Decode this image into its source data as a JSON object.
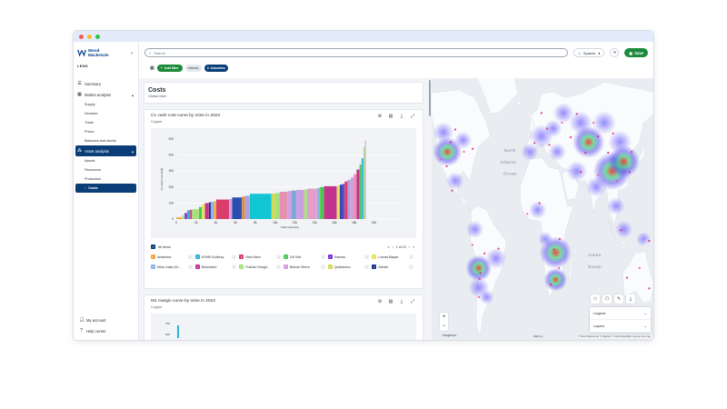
{
  "brand": {
    "name": "Wood Mackenzie",
    "product": "LENS"
  },
  "nav": {
    "summary": "Summary",
    "market_analysis": "Market analysis",
    "market_subs": [
      "Supply",
      "Demand",
      "Trade",
      "Prices",
      "Balances and stocks"
    ],
    "asset_analysis": "Asset analysis",
    "asset_subs": [
      "Assets",
      "Resources",
      "Production",
      "Costs"
    ],
    "my_account": "My account",
    "help_center": "Help center"
  },
  "topbar": {
    "search_placeholder": "Search",
    "spaces": "Spaces",
    "save": "Save"
  },
  "filters": {
    "add_filter": "Add filter",
    "industry_chip": "Industry",
    "industries_count": "4",
    "industries_label": "Industries"
  },
  "page": {
    "title": "Costs",
    "subtitle": "Global view"
  },
  "card1": {
    "title": "C1 cash cost curve by mine in 2023",
    "subtitle": "Copper"
  },
  "card2": {
    "title": "M1 margin curve by mine in 2023",
    "subtitle": "Copper",
    "tick_700": "700",
    "tick_600": "600"
  },
  "legend": {
    "all_items": "All items",
    "pager": "1 of 10",
    "items": [
      {
        "label": "Antamina",
        "color": "#f2a63b"
      },
      {
        "label": "KSHM Sudbury",
        "color": "#2bb5d8"
      },
      {
        "label": "New Afton",
        "color": "#d93e6a"
      },
      {
        "label": "Ok Tedi",
        "color": "#4cc74f"
      },
      {
        "label": "Kamoto",
        "color": "#7b2fd6"
      },
      {
        "label": "Lomas Bayas",
        "color": "#e8e05a"
      },
      {
        "label": "Mina Justa (M...",
        "color": "#8fb3e8"
      },
      {
        "label": "Boschekul",
        "color": "#c2328f"
      },
      {
        "label": "Fushan Hongli...",
        "color": "#a8e07a"
      },
      {
        "label": "Bolivar Sierra",
        "color": "#d69be0"
      },
      {
        "label": "Quellaveco",
        "color": "#d8d850"
      },
      {
        "label": "Ashele",
        "color": "#1f2f8c"
      }
    ]
  },
  "chart_data": {
    "type": "bar",
    "title": "C1 cash cost curve by mine in 2023",
    "subtitle": "Copper",
    "xlabel": "Paid metal (kt)",
    "ylabel": "C1 cash cost (c/lb)",
    "ylim": [
      0,
      500
    ],
    "xlim": [
      0,
      23000
    ],
    "y_ticks": [
      "0",
      "100",
      "200",
      "300",
      "400",
      "500"
    ],
    "x_ticks": [
      "0",
      "2k",
      "4k",
      "6k",
      "8k",
      "10k",
      "12k",
      "14k",
      "16k",
      "18k",
      "20k"
    ],
    "bars": [
      {
        "w": 600,
        "v": 10,
        "c": "#f2a63b"
      },
      {
        "w": 250,
        "v": 25,
        "c": "#b8e08a"
      },
      {
        "w": 250,
        "v": 38,
        "c": "#7b2fd6"
      },
      {
        "w": 300,
        "v": 55,
        "c": "#2bb5d8"
      },
      {
        "w": 200,
        "v": 58,
        "c": "#d93e6a"
      },
      {
        "w": 700,
        "v": 62,
        "c": "#a8e07a"
      },
      {
        "w": 300,
        "v": 75,
        "c": "#4cc74f"
      },
      {
        "w": 300,
        "v": 92,
        "c": "#e8e05a"
      },
      {
        "w": 400,
        "v": 100,
        "c": "#c2328f"
      },
      {
        "w": 200,
        "v": 105,
        "c": "#1f2f8c"
      },
      {
        "w": 300,
        "v": 108,
        "c": "#8fb3e8"
      },
      {
        "w": 250,
        "v": 110,
        "c": "#f2a63b"
      },
      {
        "w": 1300,
        "v": 122,
        "c": "#d93e6a"
      },
      {
        "w": 300,
        "v": 125,
        "c": "#d69be0"
      },
      {
        "w": 1000,
        "v": 135,
        "c": "#2b4fae"
      },
      {
        "w": 300,
        "v": 140,
        "c": "#e28b3c"
      },
      {
        "w": 500,
        "v": 146,
        "c": "#b2a0d8"
      },
      {
        "w": 2200,
        "v": 158,
        "c": "#12c6d6"
      },
      {
        "w": 300,
        "v": 160,
        "c": "#d8d850"
      },
      {
        "w": 500,
        "v": 162,
        "c": "#a8e07a"
      },
      {
        "w": 800,
        "v": 170,
        "c": "#e58fb1"
      },
      {
        "w": 400,
        "v": 175,
        "c": "#d69be0"
      },
      {
        "w": 500,
        "v": 178,
        "c": "#7ba6d8"
      },
      {
        "w": 800,
        "v": 182,
        "c": "#c9a0e0"
      },
      {
        "w": 300,
        "v": 185,
        "c": "#a8e07a"
      },
      {
        "w": 1000,
        "v": 190,
        "c": "#e2a0c8"
      },
      {
        "w": 300,
        "v": 195,
        "c": "#8fb3e8"
      },
      {
        "w": 400,
        "v": 200,
        "c": "#4cc74f"
      },
      {
        "w": 1300,
        "v": 205,
        "c": "#c2328f"
      },
      {
        "w": 300,
        "v": 208,
        "c": "#e8e05a"
      },
      {
        "w": 300,
        "v": 215,
        "c": "#2b4fae"
      },
      {
        "w": 200,
        "v": 220,
        "c": "#7b2fd6"
      },
      {
        "w": 300,
        "v": 235,
        "c": "#d93e6a"
      },
      {
        "w": 300,
        "v": 245,
        "c": "#b2a0d8"
      },
      {
        "w": 300,
        "v": 260,
        "c": "#d69be0"
      },
      {
        "w": 300,
        "v": 280,
        "c": "#e58fb1"
      },
      {
        "w": 300,
        "v": 310,
        "c": "#c2328f"
      },
      {
        "w": 200,
        "v": 340,
        "c": "#4cc74f"
      },
      {
        "w": 200,
        "v": 380,
        "c": "#2bb5d8"
      },
      {
        "w": 150,
        "v": 450,
        "c": "#a8e07a"
      },
      {
        "w": 100,
        "v": 490,
        "c": "#d69be0"
      }
    ]
  },
  "map": {
    "ocean_labels": [
      {
        "text": "North",
        "lon": -30,
        "lat": 40
      },
      {
        "text": "Atlantic",
        "lon": -32,
        "lat": 34
      },
      {
        "text": "Ocean",
        "lon": -30,
        "lat": 28
      },
      {
        "text": "Indian",
        "lon": 78,
        "lat": -14
      },
      {
        "text": "Ocean",
        "lon": 78,
        "lat": -20
      }
    ],
    "legend_label": "Legend",
    "layers_label": "Layers",
    "scale": "3000 km",
    "mapbox": "mapbox",
    "attribution": "© Wood Mackenzie © Mapbox © OpenStreetMap  Improve this map",
    "heat_color_low": "#4b3df0",
    "heat_color_high": "#ff2a2a",
    "hotspots": [
      {
        "lon": -110,
        "lat": 40,
        "r": 10,
        "i": 0.8
      },
      {
        "lon": -115,
        "lat": 50,
        "r": 7,
        "i": 0.5
      },
      {
        "lon": -100,
        "lat": 25,
        "r": 6,
        "i": 0.5
      },
      {
        "lon": -90,
        "lat": 46,
        "r": 6,
        "i": 0.5
      },
      {
        "lon": -75,
        "lat": 0,
        "r": 6,
        "i": 0.4
      },
      {
        "lon": -70,
        "lat": -20,
        "r": 9,
        "i": 0.8
      },
      {
        "lon": -70,
        "lat": -30,
        "r": 7,
        "i": 0.6
      },
      {
        "lon": -48,
        "lat": -15,
        "r": 7,
        "i": 0.5
      },
      {
        "lon": -60,
        "lat": -35,
        "r": 5,
        "i": 0.4
      },
      {
        "lon": -5,
        "lat": 40,
        "r": 6,
        "i": 0.5
      },
      {
        "lon": 10,
        "lat": 48,
        "r": 8,
        "i": 0.6
      },
      {
        "lon": 25,
        "lat": 52,
        "r": 6,
        "i": 0.5
      },
      {
        "lon": 38,
        "lat": 60,
        "r": 7,
        "i": 0.6
      },
      {
        "lon": 30,
        "lat": 40,
        "r": 6,
        "i": 0.5
      },
      {
        "lon": 5,
        "lat": 10,
        "r": 6,
        "i": 0.5
      },
      {
        "lon": 28,
        "lat": -12,
        "r": 11,
        "i": 1.0
      },
      {
        "lon": 28,
        "lat": -26,
        "r": 8,
        "i": 0.8
      },
      {
        "lon": 15,
        "lat": -5,
        "r": 5,
        "i": 0.4
      },
      {
        "lon": 60,
        "lat": 55,
        "r": 8,
        "i": 0.6
      },
      {
        "lon": 70,
        "lat": 45,
        "r": 11,
        "i": 0.9
      },
      {
        "lon": 55,
        "lat": 30,
        "r": 7,
        "i": 0.6
      },
      {
        "lon": 90,
        "lat": 55,
        "r": 8,
        "i": 0.5
      },
      {
        "lon": 100,
        "lat": 30,
        "r": 13,
        "i": 1.0
      },
      {
        "lon": 115,
        "lat": 35,
        "r": 11,
        "i": 0.9
      },
      {
        "lon": 110,
        "lat": 45,
        "r": 8,
        "i": 0.6
      },
      {
        "lon": 80,
        "lat": 22,
        "r": 7,
        "i": 0.6
      },
      {
        "lon": 105,
        "lat": 12,
        "r": 6,
        "i": 0.5
      },
      {
        "lon": 115,
        "lat": 0,
        "r": 6,
        "i": 0.5
      },
      {
        "lon": 140,
        "lat": -5,
        "r": 5,
        "i": 0.5
      }
    ]
  }
}
